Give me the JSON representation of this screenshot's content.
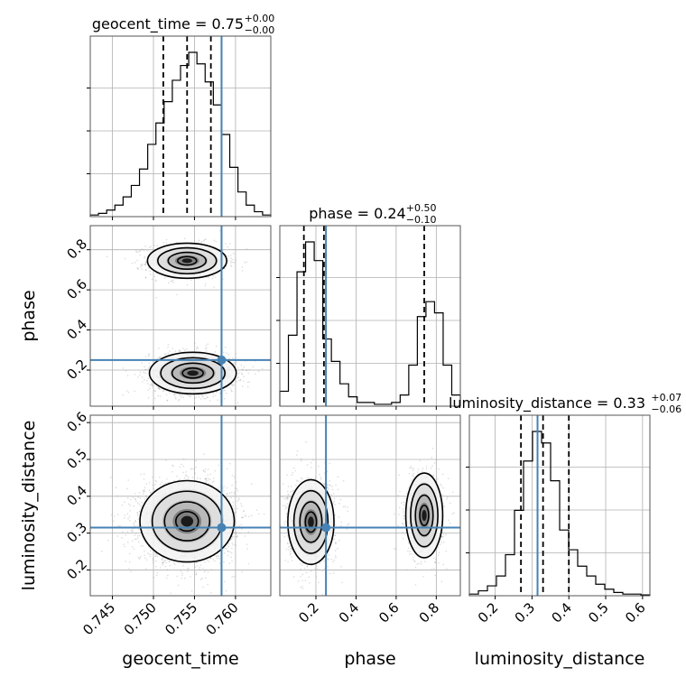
{
  "chart_data": {
    "type": "corner",
    "parameters": [
      {
        "name": "geocent_time",
        "title_main": "geocent_time = 0.75",
        "err_plus": "+0.00",
        "err_minus": "−0.00",
        "range": [
          0.7423,
          0.7643
        ],
        "ticks": [
          {
            "v": 0.745,
            "t": "0.745"
          },
          {
            "v": 0.75,
            "t": "0.750"
          },
          {
            "v": 0.755,
            "t": "0.755"
          },
          {
            "v": 0.76,
            "t": "0.760"
          }
        ],
        "truth": 0.7583,
        "quantiles": [
          0.7512,
          0.7541,
          0.757
        ],
        "hist": [
          0.01,
          0.02,
          0.04,
          0.07,
          0.12,
          0.19,
          0.29,
          0.44,
          0.57,
          0.7,
          0.83,
          0.92,
          1.0,
          0.93,
          0.82,
          0.68,
          0.5,
          0.3,
          0.15,
          0.07,
          0.03,
          0.01
        ]
      },
      {
        "name": "phase",
        "title_main": "phase = 0.24",
        "err_plus": "+0.50",
        "err_minus": "−0.10",
        "range": [
          0.02,
          0.92
        ],
        "ticks": [
          {
            "v": 0.2,
            "t": "0.2"
          },
          {
            "v": 0.4,
            "t": "0.4"
          },
          {
            "v": 0.6,
            "t": "0.6"
          },
          {
            "v": 0.8,
            "t": "0.8"
          }
        ],
        "truth": 0.25,
        "quantiles": [
          0.14,
          0.24,
          0.74
        ],
        "hist": [
          0.08,
          0.38,
          0.72,
          0.88,
          0.78,
          0.36,
          0.24,
          0.12,
          0.05,
          0.02,
          0.02,
          0.01,
          0.01,
          0.02,
          0.06,
          0.22,
          0.48,
          0.56,
          0.5,
          0.22,
          0.06
        ]
      },
      {
        "name": "luminosity_distance",
        "title_main": "luminosity_distance = 0.33",
        "err_plus": "+0.07",
        "err_minus": "−0.06",
        "range": [
          0.13,
          0.62
        ],
        "ticks": [
          {
            "v": 0.2,
            "t": "0.2"
          },
          {
            "v": 0.3,
            "t": "0.3"
          },
          {
            "v": 0.4,
            "t": "0.4"
          },
          {
            "v": 0.5,
            "t": "0.5"
          },
          {
            "v": 0.6,
            "t": "0.6"
          }
        ],
        "truth": 0.315,
        "quantiles": [
          0.27,
          0.33,
          0.4
        ],
        "hist": [
          0.01,
          0.03,
          0.06,
          0.12,
          0.25,
          0.52,
          0.82,
          1.0,
          0.93,
          0.7,
          0.4,
          0.28,
          0.18,
          0.12,
          0.07,
          0.04,
          0.02,
          0.01,
          0.01,
          0.005
        ]
      }
    ],
    "joint": [
      {
        "row": 1,
        "col": 0,
        "modes": [
          {
            "cx": 0.7541,
            "cy": 0.745,
            "sx": 0.0021,
            "sy": 0.038,
            "w": 0.4
          },
          {
            "cx": 0.7548,
            "cy": 0.185,
            "sx": 0.0023,
            "sy": 0.045,
            "w": 0.6
          }
        ]
      },
      {
        "row": 2,
        "col": 0,
        "modes": [
          {
            "cx": 0.7541,
            "cy": 0.332,
            "sx": 0.0025,
            "sy": 0.048,
            "w": 1.0
          }
        ]
      },
      {
        "row": 2,
        "col": 1,
        "modes": [
          {
            "cx": 0.175,
            "cy": 0.33,
            "sx": 0.05,
            "sy": 0.05,
            "w": 0.6
          },
          {
            "cx": 0.74,
            "cy": 0.348,
            "sx": 0.04,
            "sy": 0.05,
            "w": 0.4
          }
        ]
      }
    ],
    "truth_color": "#4682b4",
    "hist_color": "#000000",
    "grid": true
  }
}
